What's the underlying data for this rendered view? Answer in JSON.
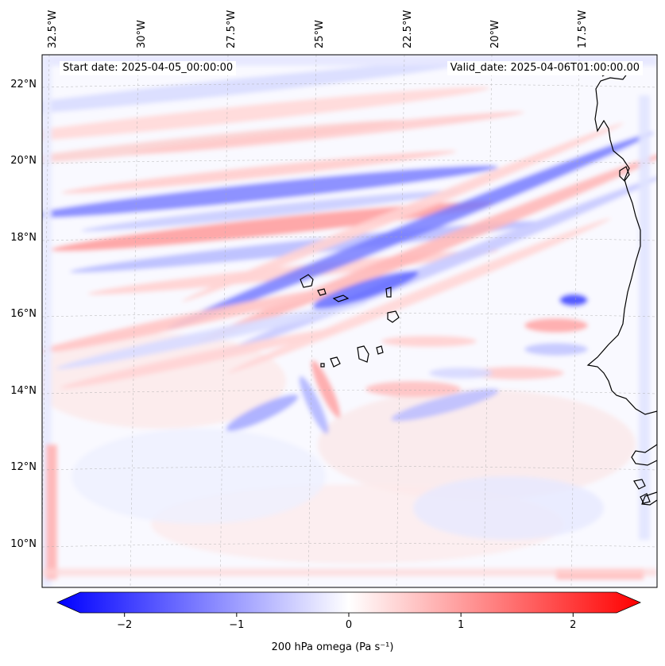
{
  "map": {
    "start_date": "Start date: 2025-04-05_00:00:00",
    "valid_date": "Valid_date: 2025-04-06T01:00:00.00",
    "lon_labels": [
      "32.5°W",
      "30°W",
      "27.5°W",
      "25°W",
      "22.5°W",
      "20°W",
      "17.5°W"
    ],
    "lat_labels": [
      "22°N",
      "20°N",
      "18°N",
      "16°N",
      "14°N",
      "12°N",
      "10°N"
    ],
    "extent": {
      "lon_min": -33.0,
      "lon_max": -15.8,
      "lat_min": 8.9,
      "lat_max": 22.8
    },
    "field": "200 hPa omega",
    "gridlines": true
  },
  "colorbar": {
    "label": "200 hPa omega (Pa s⁻¹)",
    "ticks": [
      "−2",
      "−1",
      "0",
      "1",
      "2"
    ],
    "tick_values": [
      -2,
      -1,
      0,
      1,
      2
    ],
    "range": [
      -2.6,
      2.6
    ],
    "colormap": "bwr",
    "low_color": "#0000ff",
    "mid_color": "#ffffff",
    "high_color": "#ff0000"
  }
}
